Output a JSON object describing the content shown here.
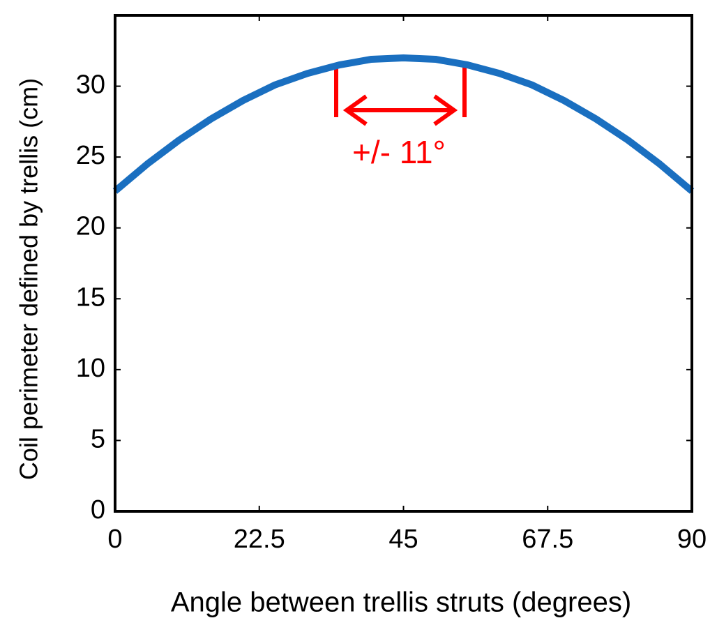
{
  "chart_data": {
    "type": "line",
    "x_label": "Angle between trellis struts (degrees)",
    "y_label": "Coil perimeter  defined by trellis (cm)",
    "annotation": "+/- 11°",
    "x": [
      0,
      5,
      10,
      15,
      20,
      25,
      30,
      35,
      40,
      45,
      50,
      55,
      60,
      65,
      70,
      75,
      80,
      85,
      90
    ],
    "series": [
      {
        "color": "#1a6fc0",
        "values": [
          22.6,
          24.5,
          26.2,
          27.7,
          29.0,
          30.1,
          30.9,
          31.5,
          31.9,
          32.0,
          31.9,
          31.5,
          30.9,
          30.1,
          29.0,
          27.7,
          26.2,
          24.5,
          22.6
        ]
      }
    ],
    "xlim": [
      0,
      90
    ],
    "xticks": [
      0,
      22.5,
      45,
      67.5,
      90
    ],
    "ylim": [
      0,
      35
    ],
    "yticks": [
      0,
      5,
      10,
      15,
      20,
      25,
      30
    ]
  }
}
